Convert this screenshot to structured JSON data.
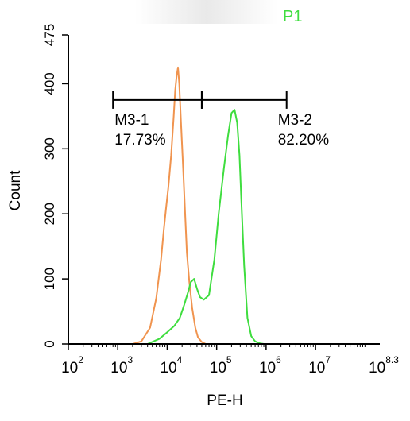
{
  "chart_data": {
    "type": "line",
    "title": "P1",
    "xlabel": "PE-H",
    "ylabel": "Count",
    "xscale": "log",
    "xlim": [
      100,
      199526231
    ],
    "ylim": [
      0,
      475
    ],
    "x_tick_labels": [
      {
        "base": "10",
        "exp": "2"
      },
      {
        "base": "10",
        "exp": "3"
      },
      {
        "base": "10",
        "exp": "4"
      },
      {
        "base": "10",
        "exp": "5"
      },
      {
        "base": "10",
        "exp": "6"
      },
      {
        "base": "10",
        "exp": "7"
      },
      {
        "base": "10",
        "exp": "8.3"
      }
    ],
    "y_ticks": [
      "0",
      "100",
      "200",
      "300",
      "400",
      "475"
    ],
    "series": [
      {
        "color": "#f0944f",
        "x": [
          2000,
          3000,
          4500,
          6000,
          7500,
          8500,
          9500,
          10500,
          12000,
          13500,
          14500,
          15500,
          16500,
          17500,
          19000,
          21000,
          23000,
          25000,
          28000,
          32000,
          37000,
          42000,
          50000,
          60000
        ],
        "y": [
          0,
          4,
          25,
          70,
          130,
          175,
          210,
          240,
          290,
          350,
          390,
          412,
          425,
          400,
          340,
          270,
          200,
          140,
          95,
          55,
          25,
          10,
          3,
          0
        ]
      },
      {
        "color": "#3fdd3f",
        "x": [
          4000,
          7000,
          10000,
          14000,
          18000,
          22000,
          26000,
          30000,
          35000,
          40000,
          46000,
          55000,
          70000,
          90000,
          110000,
          140000,
          170000,
          200000,
          230000,
          260000,
          290000,
          320000,
          360000,
          420000,
          500000,
          600000,
          750000,
          900000
        ],
        "y": [
          0,
          8,
          18,
          28,
          40,
          60,
          78,
          95,
          100,
          85,
          72,
          68,
          75,
          130,
          200,
          270,
          320,
          355,
          360,
          340,
          290,
          210,
          120,
          40,
          12,
          4,
          1,
          0
        ]
      }
    ],
    "markers": [
      {
        "name": "M3-1",
        "percent": "17.73%",
        "range": [
          800,
          50000
        ]
      },
      {
        "name": "M3-2",
        "percent": "82.20%",
        "range": [
          50000,
          2600000
        ]
      }
    ],
    "marker_y": 375,
    "grid": false,
    "legend": "none"
  }
}
